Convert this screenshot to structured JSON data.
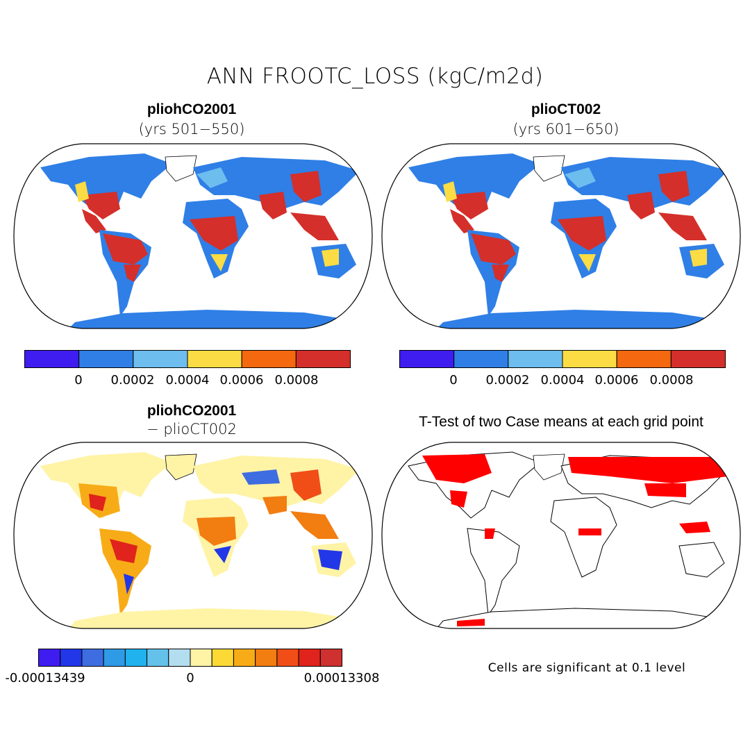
{
  "title": "ANN FROOTC_LOSS (kgC/m2d)",
  "panels": [
    {
      "id": "a",
      "title": "pliohCO2001",
      "subtitle": "(yrs 501−550)"
    },
    {
      "id": "b",
      "title": "plioCT002",
      "subtitle": "(yrs 601−650)"
    },
    {
      "id": "c",
      "title": "pliohCO2001",
      "subtitle": "− plioCT002"
    },
    {
      "id": "d",
      "title": "T-Test of two Case means at each grid point",
      "subtitle": ""
    }
  ],
  "colorbars": {
    "absolute": {
      "colors": [
        "#3f1cf0",
        "#2f7fe6",
        "#6dbdee",
        "#fbdc44",
        "#f4680f",
        "#d42f2a"
      ],
      "labels": [
        "0",
        "0.0002",
        "0.0004",
        "0.0006",
        "0.0008"
      ]
    },
    "difference": {
      "colors": [
        "#3f1cf0",
        "#2237e8",
        "#3d6de0",
        "#2f9ae6",
        "#1fb2ee",
        "#64c1ea",
        "#b3def0",
        "#fff3a6",
        "#fdd936",
        "#f7ac17",
        "#f27d11",
        "#f04d17",
        "#e0231c",
        "#cf3030"
      ],
      "labels": [
        "-0.00013439",
        "0",
        "0.00013308"
      ]
    }
  },
  "ttest_note": "Cells are significant at 0.1 level"
}
